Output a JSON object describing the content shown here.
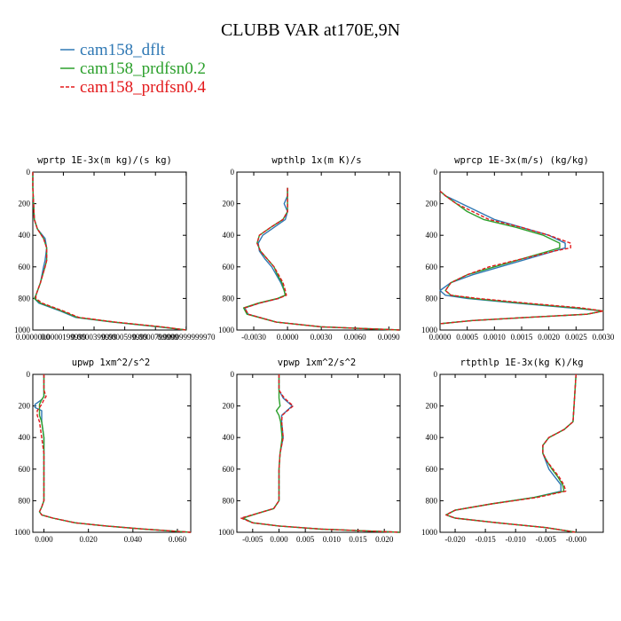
{
  "figure": {
    "title": "CLUBB VAR at170E,9N"
  },
  "colors": {
    "dflt": "#2f78b4",
    "prdfsn02": "#2ca02c",
    "prdfsn04": "#e31a1c"
  },
  "legend": [
    {
      "label": "cam158_dflt",
      "color": "#2f78b4",
      "dash": "solid"
    },
    {
      "label": "cam158_prdfsn0.2",
      "color": "#2ca02c",
      "dash": "solid"
    },
    {
      "label": "cam158_prdfsn0.4",
      "color": "#e31a1c",
      "dash": "dash"
    }
  ],
  "chart_data": [
    {
      "type": "line",
      "title": "wprtp  1E-3x(m kg)/(s kg)",
      "xlim": [
        0.0,
        0.0001
      ],
      "ylim": [
        1000,
        0
      ],
      "xticks": [
        0.0,
        1.99e-05,
        3.99e-05,
        5.99e-05,
        7.99e-05,
        9.99e-05
      ],
      "xticklabels": [
        "0.0000000",
        "0.0000199999",
        "0.0000399999",
        "0.0000599999",
        "0.0000799999",
        "0.0000999999970"
      ],
      "yticks": [
        0,
        200,
        400,
        600,
        800,
        1000
      ],
      "series": [
        {
          "name": "cam158_dflt",
          "y": [
            0,
            100,
            300,
            360,
            420,
            480,
            560,
            600,
            700,
            780,
            800,
            830,
            880,
            920,
            950,
            980,
            1000
          ],
          "x": [
            0.0,
            0.0,
            1e-06,
            3e-06,
            8e-06,
            9e-06,
            8e-06,
            7e-06,
            5e-06,
            2e-06,
            1e-06,
            4e-06,
            1.8e-05,
            2.8e-05,
            5.2e-05,
            8.2e-05,
            0.0001
          ]
        },
        {
          "name": "cam158_prdfsn0.2",
          "y": [
            0,
            100,
            300,
            360,
            420,
            480,
            560,
            600,
            700,
            780,
            800,
            830,
            880,
            920,
            950,
            980,
            1000
          ],
          "x": [
            0.0,
            0.0,
            1e-06,
            3e-06,
            7e-06,
            9e-06,
            9e-06,
            8e-06,
            5e-06,
            2e-06,
            1e-06,
            5e-06,
            1.9e-05,
            2.9e-05,
            5.3e-05,
            8.3e-05,
            0.0001
          ]
        },
        {
          "name": "cam158_prdfsn0.4",
          "y": [
            0,
            100,
            300,
            360,
            420,
            480,
            560,
            600,
            700,
            780,
            800,
            830,
            880,
            920,
            950,
            980,
            1000
          ],
          "x": [
            0.0,
            0.0,
            1e-06,
            3e-06,
            7e-06,
            9e-06,
            9e-06,
            8e-06,
            5e-06,
            2e-06,
            2e-06,
            6e-06,
            2e-05,
            3e-05,
            5.4e-05,
            8.4e-05,
            0.0001
          ]
        }
      ]
    },
    {
      "type": "line",
      "title": "wpthlp  1x(m K)/s",
      "xlim": [
        -0.0045,
        0.01
      ],
      "ylim": [
        1000,
        0
      ],
      "xticks": [
        -0.003,
        0.0,
        0.003,
        0.006,
        0.009
      ],
      "xticklabels": [
        "-0.0030",
        "0.0000",
        "0.0030",
        "0.0060",
        "0.0090"
      ],
      "yticks": [
        0,
        200,
        400,
        600,
        800,
        1000
      ],
      "series": [
        {
          "name": "cam158_dflt",
          "y": [
            100,
            150,
            200,
            250,
            300,
            350,
            400,
            450,
            500,
            550,
            600,
            650,
            700,
            750,
            780,
            800,
            830,
            860,
            900,
            950,
            980,
            1000
          ],
          "x": [
            0.0,
            0.0,
            -0.0003,
            0.0,
            -0.0002,
            -0.0012,
            -0.0022,
            -0.0026,
            -0.0025,
            -0.002,
            -0.0014,
            -0.001,
            -0.0006,
            -0.0003,
            -0.0002,
            -0.0008,
            -0.0025,
            -0.0038,
            -0.0035,
            -0.001,
            0.003,
            0.01
          ]
        },
        {
          "name": "cam158_prdfsn0.2",
          "y": [
            100,
            150,
            200,
            250,
            300,
            350,
            400,
            450,
            500,
            550,
            600,
            650,
            700,
            750,
            780,
            800,
            830,
            860,
            900,
            950,
            980,
            1000
          ],
          "x": [
            0.0,
            0.0,
            0.0,
            0.0,
            -0.0004,
            -0.0015,
            -0.0025,
            -0.0027,
            -0.0024,
            -0.0018,
            -0.0012,
            -0.0009,
            -0.0005,
            -0.0003,
            -0.0002,
            -0.0009,
            -0.0026,
            -0.0039,
            -0.0036,
            -0.001,
            0.003,
            0.01
          ]
        },
        {
          "name": "cam158_prdfsn0.4",
          "y": [
            100,
            150,
            200,
            250,
            300,
            350,
            400,
            450,
            500,
            550,
            600,
            650,
            700,
            750,
            780,
            800,
            830,
            860,
            900,
            950,
            980,
            1000
          ],
          "x": [
            0.0,
            0.0,
            0.0,
            0.0,
            -0.0004,
            -0.0015,
            -0.0025,
            -0.0027,
            -0.0024,
            -0.0018,
            -0.0012,
            -0.0008,
            -0.0004,
            -0.0002,
            -0.0001,
            -0.0008,
            -0.0025,
            -0.0038,
            -0.0035,
            -0.001,
            0.003,
            0.01
          ]
        }
      ]
    },
    {
      "type": "line",
      "title": "wprcp  1E-3x(m/s) (kg/kg)",
      "xlim": [
        0.0,
        0.003
      ],
      "ylim": [
        1000,
        0
      ],
      "xticks": [
        0.0,
        0.0005,
        0.001,
        0.0015,
        0.002,
        0.0025,
        0.003
      ],
      "xticklabels": [
        "0.0000",
        "0.0005",
        "0.0010",
        "0.0015",
        "0.0020",
        "0.0025",
        "0.0030"
      ],
      "yticks": [
        0,
        200,
        400,
        600,
        800,
        1000
      ],
      "series": [
        {
          "name": "cam158_dflt",
          "y": [
            120,
            150,
            200,
            250,
            300,
            350,
            400,
            450,
            480,
            500,
            550,
            600,
            650,
            700,
            750,
            780,
            800,
            830,
            860,
            880,
            900,
            920,
            940,
            960
          ],
          "x": [
            0.0,
            0.0001,
            0.0004,
            0.0007,
            0.001,
            0.0015,
            0.002,
            0.0023,
            0.0023,
            0.0021,
            0.0016,
            0.0011,
            0.0006,
            0.0002,
            0.0,
            0.0001,
            0.0005,
            0.0014,
            0.0024,
            0.003,
            0.0027,
            0.0016,
            0.0006,
            0.0
          ]
        },
        {
          "name": "cam158_prdfsn0.2",
          "y": [
            120,
            150,
            200,
            250,
            300,
            350,
            400,
            450,
            480,
            500,
            550,
            600,
            650,
            700,
            750,
            780,
            800,
            830,
            860,
            880,
            900,
            920,
            940,
            960
          ],
          "x": [
            0.0,
            0.0001,
            0.0003,
            0.0005,
            0.0008,
            0.0014,
            0.0019,
            0.0022,
            0.0022,
            0.002,
            0.0015,
            0.001,
            0.0005,
            0.0002,
            0.0001,
            0.0002,
            0.0006,
            0.0015,
            0.0025,
            0.003,
            0.0027,
            0.0016,
            0.0006,
            0.0
          ]
        },
        {
          "name": "cam158_prdfsn0.4",
          "y": [
            120,
            150,
            200,
            250,
            300,
            350,
            400,
            450,
            480,
            500,
            550,
            600,
            650,
            700,
            750,
            780,
            800,
            830,
            860,
            880,
            900,
            920,
            940,
            960
          ],
          "x": [
            0.0,
            0.0001,
            0.0003,
            0.0006,
            0.0009,
            0.0015,
            0.002,
            0.0024,
            0.0024,
            0.0021,
            0.0015,
            0.0009,
            0.0005,
            0.0002,
            0.0001,
            0.0002,
            0.0007,
            0.0016,
            0.0026,
            0.003,
            0.0027,
            0.0016,
            0.0006,
            0.0
          ]
        }
      ]
    },
    {
      "type": "line",
      "title": "upwp  1xm^2/s^2",
      "xlim": [
        -0.005,
        0.066
      ],
      "ylim": [
        1000,
        0
      ],
      "xticks": [
        0.0,
        0.02,
        0.04,
        0.06
      ],
      "xticklabels": [
        "0.000",
        "0.020",
        "0.040",
        "0.060"
      ],
      "yticks": [
        0,
        200,
        400,
        600,
        800,
        1000
      ],
      "series": [
        {
          "name": "cam158_dflt",
          "y": [
            0,
            100,
            140,
            160,
            190,
            210,
            230,
            260,
            300,
            400,
            500,
            600,
            700,
            800,
            840,
            870,
            890,
            910,
            940,
            960,
            980,
            1000
          ],
          "x": [
            0.0,
            0.0,
            0.0,
            -0.001,
            -0.004,
            -0.004,
            -0.001,
            -0.001,
            -0.001,
            0.0,
            0.0,
            0.0,
            0.0,
            0.0,
            -0.001,
            -0.002,
            -0.001,
            0.004,
            0.014,
            0.028,
            0.045,
            0.066
          ]
        },
        {
          "name": "cam158_prdfsn0.2",
          "y": [
            0,
            100,
            140,
            160,
            190,
            210,
            230,
            260,
            300,
            400,
            500,
            600,
            700,
            800,
            840,
            870,
            890,
            910,
            940,
            960,
            980,
            1000
          ],
          "x": [
            0.0,
            0.0,
            0.0,
            -0.001,
            -0.002,
            -0.002,
            -0.002,
            -0.002,
            -0.001,
            0.0,
            0.0,
            0.0,
            0.0,
            0.0,
            -0.001,
            -0.002,
            -0.001,
            0.004,
            0.014,
            0.028,
            0.045,
            0.066
          ]
        },
        {
          "name": "cam158_prdfsn0.4",
          "y": [
            0,
            100,
            140,
            160,
            190,
            210,
            230,
            260,
            300,
            400,
            500,
            600,
            700,
            800,
            840,
            870,
            890,
            910,
            940,
            960,
            980,
            1000
          ],
          "x": [
            0.0,
            0.0,
            0.001,
            0.0,
            -0.001,
            -0.002,
            -0.003,
            -0.003,
            -0.002,
            -0.001,
            0.0,
            0.0,
            0.0,
            0.0,
            -0.001,
            -0.002,
            -0.001,
            0.004,
            0.014,
            0.028,
            0.045,
            0.066
          ]
        }
      ]
    },
    {
      "type": "line",
      "title": "vpwp  1xm^2/s^2",
      "xlim": [
        -0.008,
        0.023
      ],
      "ylim": [
        1000,
        0
      ],
      "xticks": [
        -0.005,
        0.0,
        0.005,
        0.01,
        0.015,
        0.02
      ],
      "xticklabels": [
        "-0.005",
        "0.000",
        "0.005",
        "0.010",
        "0.015",
        "0.020"
      ],
      "yticks": [
        0,
        200,
        400,
        600,
        800,
        1000
      ],
      "series": [
        {
          "name": "cam158_dflt",
          "y": [
            0,
            100,
            150,
            200,
            230,
            260,
            300,
            400,
            500,
            600,
            700,
            800,
            850,
            880,
            910,
            940,
            960,
            980,
            1000
          ],
          "x": [
            0.0,
            0.0,
            0.0008,
            0.0025,
            0.0015,
            0.0005,
            0.0005,
            0.0008,
            0.0002,
            0.0,
            0.0,
            0.0,
            -0.001,
            -0.004,
            -0.007,
            -0.005,
            0.0,
            0.008,
            0.023
          ]
        },
        {
          "name": "cam158_prdfsn0.2",
          "y": [
            0,
            100,
            150,
            200,
            230,
            260,
            300,
            400,
            500,
            600,
            700,
            800,
            850,
            880,
            910,
            940,
            960,
            980,
            1000
          ],
          "x": [
            0.0,
            0.0,
            0.0,
            0.0002,
            -0.0005,
            0.0,
            0.0003,
            0.0006,
            0.0002,
            0.0,
            0.0,
            0.0,
            -0.001,
            -0.004,
            -0.0068,
            -0.005,
            0.0,
            0.008,
            0.023
          ]
        },
        {
          "name": "cam158_prdfsn0.4",
          "y": [
            0,
            100,
            150,
            200,
            230,
            260,
            300,
            400,
            500,
            600,
            700,
            800,
            850,
            880,
            910,
            940,
            960,
            980,
            1000
          ],
          "x": [
            0.0,
            0.0,
            0.001,
            0.0027,
            0.0016,
            0.0006,
            0.0005,
            0.0008,
            0.0002,
            0.0,
            0.0,
            0.0,
            -0.001,
            -0.004,
            -0.0072,
            -0.005,
            0.0,
            0.008,
            0.023
          ]
        }
      ]
    },
    {
      "type": "line",
      "title": "rtpthlp  1E-3x(kg K)/kg",
      "xlim": [
        -0.0225,
        0.0045
      ],
      "ylim": [
        1000,
        0
      ],
      "xticks": [
        -0.02,
        -0.015,
        -0.01,
        -0.005,
        0.0
      ],
      "xticklabels": [
        "-0.020",
        "-0.015",
        "-0.010",
        "-0.005",
        "-0.000"
      ],
      "yticks": [
        0,
        200,
        400,
        600,
        800,
        1000
      ],
      "series": [
        {
          "name": "cam158_dflt",
          "y": [
            0,
            300,
            350,
            400,
            450,
            500,
            550,
            600,
            650,
            700,
            740,
            780,
            820,
            860,
            890,
            910,
            940,
            970,
            1000
          ],
          "x": [
            0.0,
            -0.0005,
            -0.002,
            -0.0045,
            -0.0055,
            -0.0055,
            -0.005,
            -0.0045,
            -0.0035,
            -0.0025,
            -0.0025,
            -0.007,
            -0.014,
            -0.02,
            -0.0215,
            -0.02,
            -0.013,
            -0.005,
            0.0
          ]
        },
        {
          "name": "cam158_prdfsn0.2",
          "y": [
            0,
            300,
            350,
            400,
            450,
            500,
            550,
            600,
            650,
            700,
            740,
            780,
            820,
            860,
            890,
            910,
            940,
            970,
            1000
          ],
          "x": [
            0.0,
            -0.0005,
            -0.002,
            -0.0045,
            -0.0055,
            -0.0055,
            -0.0048,
            -0.004,
            -0.003,
            -0.0022,
            -0.002,
            -0.007,
            -0.014,
            -0.02,
            -0.0215,
            -0.02,
            -0.013,
            -0.005,
            0.0
          ]
        },
        {
          "name": "cam158_prdfsn0.4",
          "y": [
            0,
            300,
            350,
            400,
            450,
            500,
            550,
            600,
            650,
            700,
            740,
            780,
            820,
            860,
            890,
            910,
            940,
            970,
            1000
          ],
          "x": [
            0.0,
            -0.0005,
            -0.002,
            -0.0045,
            -0.0055,
            -0.0055,
            -0.0048,
            -0.0038,
            -0.0028,
            -0.002,
            -0.0017,
            -0.0065,
            -0.014,
            -0.02,
            -0.0215,
            -0.02,
            -0.013,
            -0.005,
            0.0
          ]
        }
      ]
    }
  ]
}
